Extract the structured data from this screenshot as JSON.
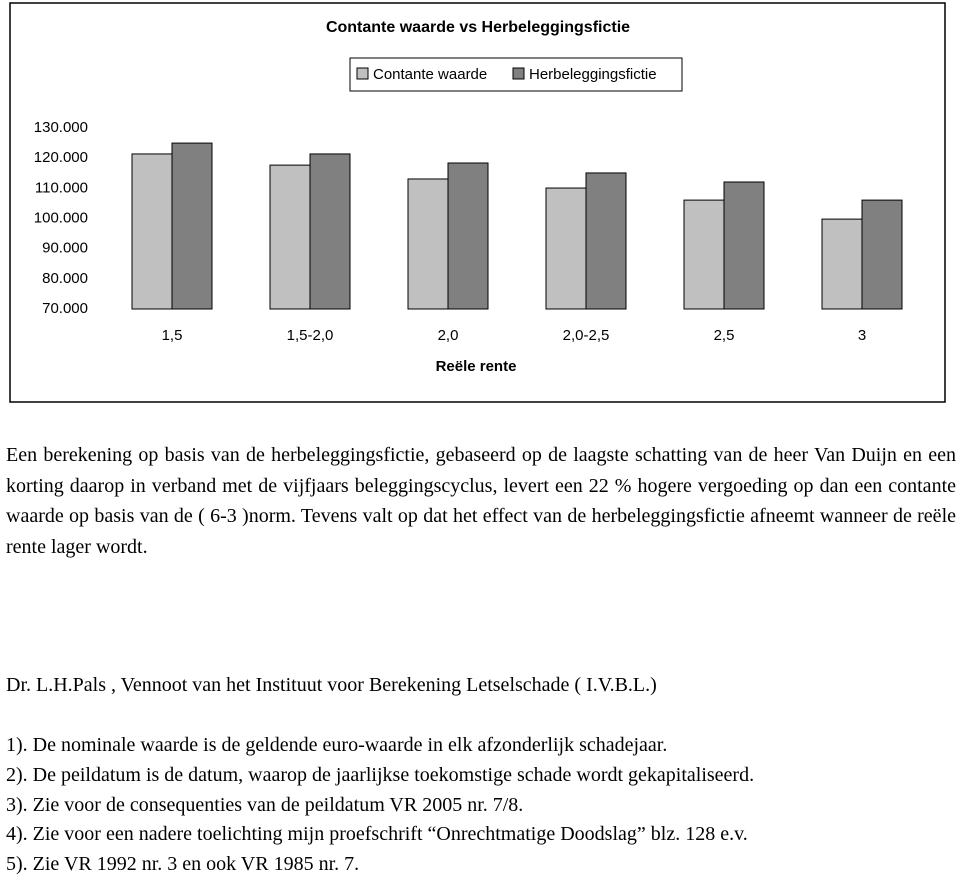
{
  "chart_data": {
    "type": "bar",
    "title": "Contante waarde vs Herbeleggingsfictie",
    "legend": "top",
    "categories": [
      "1,5",
      "1,5-2,0",
      "2,0",
      "2,0-2,5",
      "2,5",
      "3"
    ],
    "series": [
      {
        "name": "Contante waarde",
        "color": "#c0c0c0",
        "values": [
          121400,
          117700,
          113100,
          110100,
          106100,
          99800
        ]
      },
      {
        "name": "Herbeleggingsfictie",
        "color": "#808080",
        "values": [
          125000,
          121400,
          118400,
          115100,
          112100,
          106100
        ]
      }
    ],
    "xlabel": "Reële rente",
    "ylim": [
      70000,
      130000
    ],
    "yticks": [
      {
        "value": 70000,
        "label": "70.000"
      },
      {
        "value": 80000,
        "label": "80.000"
      },
      {
        "value": 90000,
        "label": "90.000"
      },
      {
        "value": 100000,
        "label": "100.000"
      },
      {
        "value": 110000,
        "label": "110.000"
      },
      {
        "value": 120000,
        "label": "120.000"
      },
      {
        "value": 130000,
        "label": "130.000"
      }
    ],
    "grid": false
  },
  "body": {
    "paragraph": "Een berekening op basis van de herbeleggingsfictie, gebaseerd op de laagste schatting van de heer Van Duijn en een korting daarop in verband met de vijfjaars beleggingscyclus, levert een 22 % hogere vergoeding op dan een contante waarde op basis van de ( 6-3 )norm. Tevens valt op dat het effect van de herbeleggingsfictie afneemt wanneer de reële rente lager wordt.",
    "signature": "Dr. L.H.Pals , Vennoot van het Instituut voor Berekening Letselschade ( I.V.B.L.)",
    "notes": [
      "1). De nominale waarde is de geldende euro-waarde in elk afzonderlijk schadejaar.",
      "2). De peildatum is de datum, waarop de jaarlijkse toekomstige schade wordt gekapitaliseerd.",
      "3). Zie voor de consequenties van de peildatum VR 2005 nr. 7/8.",
      "4). Zie voor een nadere toelichting mijn proefschrift “Onrechtmatige Doodslag” blz. 128 e.v.",
      "5). Zie VR 1992 nr. 3 en ook VR 1985 nr. 7."
    ]
  }
}
